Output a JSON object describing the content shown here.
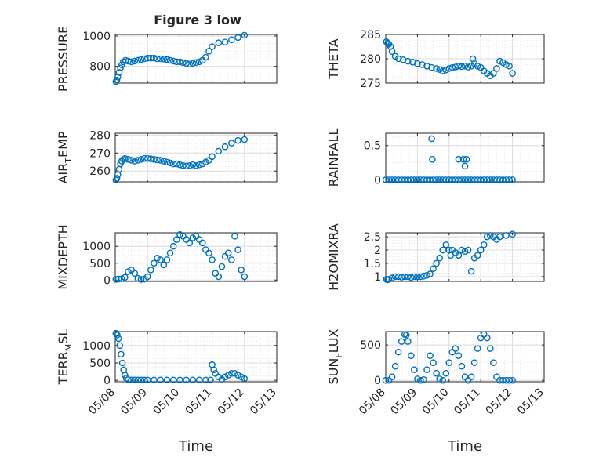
{
  "figure": {
    "title": "Figure 3 low"
  },
  "chart_data": [
    {
      "type": "scatter",
      "title": "Figure 3 low",
      "xlabel": "",
      "ylabel": "PRESSURE",
      "x_range": [
        "05/08",
        "05/13"
      ],
      "x_ticks": [],
      "y_ticks": [
        "800",
        "1000"
      ],
      "ylim": [
        690,
        1010
      ],
      "grid": true,
      "marker_color": "#0072BD",
      "x": [
        "05/08",
        "05/08",
        "05/08",
        "05/08",
        "05/08",
        "05/08",
        "05/08",
        "05/08",
        "05/08",
        "05/08",
        "05/09",
        "05/09",
        "05/09",
        "05/09",
        "05/09",
        "05/09",
        "05/09",
        "05/09",
        "05/09",
        "05/09",
        "05/10",
        "05/10",
        "05/10",
        "05/10",
        "05/10",
        "05/10",
        "05/10",
        "05/10",
        "05/10",
        "05/10",
        "05/11",
        "05/11",
        "05/11",
        "05/11",
        "05/11",
        "05/11",
        "05/11",
        "05/11",
        "05/12",
        "05/12"
      ],
      "x_days": [
        0.02,
        0.05,
        0.08,
        0.12,
        0.16,
        0.2,
        0.25,
        0.32,
        0.4,
        0.5,
        0.6,
        0.7,
        0.8,
        0.9,
        1.0,
        1.1,
        1.2,
        1.3,
        1.4,
        1.5,
        1.6,
        1.7,
        1.8,
        1.9,
        2.0,
        2.1,
        2.2,
        2.3,
        2.4,
        2.5,
        2.6,
        2.7,
        2.8,
        2.9,
        3.0,
        3.2,
        3.4,
        3.6,
        3.8,
        4.0
      ],
      "y": [
        700,
        710,
        730,
        760,
        790,
        810,
        830,
        840,
        835,
        830,
        835,
        840,
        845,
        850,
        855,
        855,
        855,
        850,
        850,
        848,
        845,
        840,
        835,
        830,
        830,
        825,
        820,
        815,
        820,
        825,
        830,
        840,
        860,
        900,
        930,
        955,
        960,
        975,
        990,
        1005
      ]
    },
    {
      "type": "scatter",
      "xlabel": "",
      "ylabel": "THETA",
      "x_range": [
        "05/08",
        "05/13"
      ],
      "x_ticks": [],
      "y_ticks": [
        "275",
        "280",
        "285"
      ],
      "ylim": [
        275,
        285
      ],
      "grid": true,
      "marker_color": "#0072BD",
      "x_days": [
        0.02,
        0.06,
        0.1,
        0.15,
        0.2,
        0.3,
        0.4,
        0.55,
        0.7,
        0.85,
        1.0,
        1.15,
        1.3,
        1.45,
        1.6,
        1.7,
        1.8,
        1.9,
        2.0,
        2.1,
        2.2,
        2.3,
        2.4,
        2.5,
        2.6,
        2.7,
        2.75,
        2.8,
        2.9,
        3.0,
        3.1,
        3.2,
        3.3,
        3.4,
        3.5,
        3.6,
        3.7,
        3.8,
        3.9,
        4.0
      ],
      "y": [
        283.5,
        283.2,
        283,
        282.5,
        281.5,
        280.5,
        280,
        279.8,
        279.5,
        279.3,
        279,
        278.8,
        278.5,
        278.2,
        278,
        277.8,
        277.5,
        277.7,
        278,
        278.2,
        278.3,
        278.5,
        278.4,
        278.5,
        278.3,
        278.5,
        280,
        279,
        278.5,
        278.2,
        277.5,
        277,
        276.5,
        277,
        278,
        279.5,
        279.2,
        278.8,
        278.5,
        277
      ]
    },
    {
      "type": "scatter",
      "xlabel": "",
      "ylabel": "AIR",
      "ylabel_subscript": "T",
      "ylabel_suffix": "EMP",
      "x_range": [
        "05/08",
        "05/13"
      ],
      "x_ticks": [],
      "y_ticks": [
        "260",
        "270",
        "280"
      ],
      "ylim": [
        254,
        281
      ],
      "grid": true,
      "marker_color": "#0072BD",
      "x_days": [
        0.02,
        0.05,
        0.08,
        0.12,
        0.16,
        0.2,
        0.25,
        0.3,
        0.4,
        0.5,
        0.6,
        0.7,
        0.8,
        0.9,
        1.0,
        1.1,
        1.2,
        1.3,
        1.4,
        1.5,
        1.6,
        1.7,
        1.8,
        1.9,
        2.0,
        2.1,
        2.2,
        2.3,
        2.4,
        2.5,
        2.6,
        2.7,
        2.8,
        2.9,
        3.0,
        3.2,
        3.4,
        3.6,
        3.8,
        4.0
      ],
      "y": [
        255,
        256,
        258,
        261,
        264,
        265.5,
        266.5,
        267,
        266.5,
        266,
        265.5,
        266,
        266.5,
        267,
        267,
        266.8,
        266.5,
        266.2,
        266,
        265.5,
        265,
        264.5,
        264,
        264,
        263.5,
        263,
        262.8,
        263,
        263.5,
        263,
        263.5,
        264,
        265,
        266,
        268,
        271,
        273.5,
        275.5,
        277,
        277.5
      ]
    },
    {
      "type": "scatter",
      "xlabel": "",
      "ylabel": "RAINFALL",
      "x_range": [
        "05/08",
        "05/13"
      ],
      "x_ticks": [],
      "y_ticks": [
        "0",
        "0.5"
      ],
      "ylim": [
        -0.03,
        0.68
      ],
      "grid": true,
      "marker_color": "#0072BD",
      "x_days": [
        0.0,
        0.1,
        0.2,
        0.3,
        0.4,
        0.5,
        0.6,
        0.7,
        0.8,
        0.9,
        1.0,
        1.1,
        1.2,
        1.3,
        1.4,
        1.5,
        1.6,
        1.7,
        1.8,
        1.9,
        2.0,
        2.1,
        2.2,
        2.3,
        2.4,
        2.5,
        2.6,
        2.7,
        2.8,
        2.9,
        3.0,
        3.1,
        3.2,
        3.3,
        3.4,
        3.5,
        3.6,
        3.7,
        3.8,
        3.9,
        4.0,
        1.45,
        1.47,
        2.3,
        2.45,
        2.5,
        2.55
      ],
      "y": [
        0,
        0,
        0,
        0,
        0,
        0,
        0,
        0,
        0,
        0,
        0,
        0,
        0,
        0,
        0,
        0,
        0,
        0,
        0,
        0,
        0,
        0,
        0,
        0,
        0,
        0,
        0,
        0,
        0,
        0,
        0,
        0,
        0,
        0,
        0,
        0,
        0,
        0,
        0,
        0,
        0,
        0.6,
        0.3,
        0.3,
        0.3,
        0.2,
        0.3
      ]
    },
    {
      "type": "scatter",
      "xlabel": "",
      "ylabel": "MIXDEPTH",
      "x_range": [
        "05/08",
        "05/13"
      ],
      "x_ticks": [],
      "y_ticks": [
        "0",
        "500",
        "1000"
      ],
      "ylim": [
        -40,
        1400
      ],
      "grid": true,
      "marker_color": "#0072BD",
      "x_days": [
        0.02,
        0.1,
        0.2,
        0.3,
        0.4,
        0.5,
        0.6,
        0.7,
        0.8,
        0.9,
        1.0,
        1.1,
        1.2,
        1.3,
        1.4,
        1.5,
        1.6,
        1.7,
        1.8,
        1.9,
        2.0,
        2.1,
        2.2,
        2.3,
        2.4,
        2.5,
        2.6,
        2.7,
        2.8,
        2.9,
        3.0,
        3.1,
        3.2,
        3.3,
        3.4,
        3.5,
        3.6,
        3.7,
        3.8,
        3.9,
        4.0
      ],
      "y": [
        20,
        30,
        40,
        80,
        250,
        300,
        200,
        50,
        20,
        30,
        100,
        300,
        500,
        650,
        600,
        450,
        600,
        800,
        1000,
        1200,
        1350,
        1300,
        1200,
        1100,
        1250,
        1300,
        1200,
        1100,
        900,
        800,
        600,
        200,
        100,
        400,
        700,
        800,
        600,
        1300,
        900,
        300,
        100
      ]
    },
    {
      "type": "scatter",
      "xlabel": "",
      "ylabel": "H2OMIXRA",
      "x_range": [
        "05/08",
        "05/13"
      ],
      "x_ticks": [],
      "y_ticks": [
        "1",
        "1.5",
        "2",
        "2.5"
      ],
      "ylim": [
        0.82,
        2.65
      ],
      "grid": true,
      "marker_color": "#0072BD",
      "x_days": [
        0.02,
        0.06,
        0.1,
        0.2,
        0.3,
        0.4,
        0.5,
        0.6,
        0.7,
        0.8,
        0.9,
        1.0,
        1.1,
        1.2,
        1.3,
        1.4,
        1.5,
        1.6,
        1.7,
        1.8,
        1.9,
        2.0,
        2.05,
        2.1,
        2.2,
        2.3,
        2.4,
        2.5,
        2.6,
        2.7,
        2.8,
        2.9,
        3.0,
        3.1,
        3.2,
        3.3,
        3.4,
        3.5,
        3.6,
        3.8,
        4.0
      ],
      "y": [
        0.9,
        0.88,
        0.9,
        0.95,
        1.0,
        1.0,
        0.98,
        1.0,
        1.0,
        0.97,
        1.0,
        1.0,
        1.0,
        1.02,
        1.05,
        1.1,
        1.3,
        1.5,
        1.7,
        2.0,
        2.2,
        2.0,
        1.8,
        2.0,
        1.9,
        1.8,
        2.0,
        1.95,
        2.0,
        1.2,
        1.7,
        1.8,
        2.0,
        2.2,
        2.5,
        2.55,
        2.5,
        2.4,
        2.5,
        2.55,
        2.6
      ]
    },
    {
      "type": "scatter",
      "xlabel": "Time",
      "ylabel": "TERR",
      "ylabel_subscript": "M",
      "ylabel_suffix": "SL",
      "x_range": [
        "05/08",
        "05/13"
      ],
      "x_ticks": [
        "05/08",
        "05/09",
        "05/10",
        "05/11",
        "05/12",
        "05/13"
      ],
      "y_ticks": [
        "0",
        "500",
        "1000"
      ],
      "ylim": [
        -40,
        1400
      ],
      "grid": true,
      "marker_color": "#0072BD",
      "x_days": [
        0.02,
        0.06,
        0.1,
        0.14,
        0.18,
        0.22,
        0.26,
        0.3,
        0.34,
        0.4,
        0.5,
        0.6,
        0.7,
        0.8,
        0.9,
        1.0,
        1.2,
        1.4,
        1.6,
        1.8,
        2.0,
        2.2,
        2.4,
        2.6,
        2.8,
        2.95,
        3.0,
        3.05,
        3.1,
        3.2,
        3.3,
        3.4,
        3.5,
        3.6,
        3.7,
        3.8,
        3.9,
        4.0
      ],
      "y": [
        1350,
        1300,
        1200,
        1000,
        750,
        500,
        300,
        150,
        60,
        20,
        10,
        10,
        10,
        10,
        10,
        10,
        10,
        10,
        10,
        10,
        10,
        10,
        10,
        10,
        10,
        10,
        450,
        300,
        200,
        100,
        30,
        100,
        150,
        200,
        200,
        150,
        100,
        50
      ]
    },
    {
      "type": "scatter",
      "xlabel": "Time",
      "ylabel": "SUN",
      "ylabel_subscript": "F",
      "ylabel_suffix": "LUX",
      "x_range": [
        "05/08",
        "05/13"
      ],
      "x_ticks": [
        "05/08",
        "05/09",
        "05/10",
        "05/11",
        "05/12",
        "05/13"
      ],
      "y_ticks": [
        "0",
        "500"
      ],
      "ylim": [
        -20,
        690
      ],
      "grid": true,
      "marker_color": "#0072BD",
      "x_days": [
        0.0,
        0.1,
        0.2,
        0.3,
        0.4,
        0.5,
        0.6,
        0.65,
        0.7,
        0.8,
        0.9,
        1.0,
        1.1,
        1.2,
        1.3,
        1.4,
        1.5,
        1.6,
        1.7,
        1.8,
        1.9,
        2.0,
        2.1,
        2.2,
        2.3,
        2.4,
        2.5,
        2.6,
        2.7,
        2.8,
        2.9,
        3.0,
        3.1,
        3.2,
        3.3,
        3.4,
        3.5,
        3.6,
        3.7,
        3.8,
        3.9,
        4.0
      ],
      "y": [
        0,
        0,
        50,
        200,
        400,
        550,
        650,
        640,
        550,
        350,
        150,
        20,
        0,
        10,
        150,
        350,
        250,
        100,
        20,
        0,
        100,
        250,
        400,
        450,
        350,
        200,
        50,
        0,
        50,
        250,
        450,
        600,
        650,
        600,
        450,
        250,
        50,
        0,
        0,
        0,
        0,
        0
      ]
    }
  ]
}
